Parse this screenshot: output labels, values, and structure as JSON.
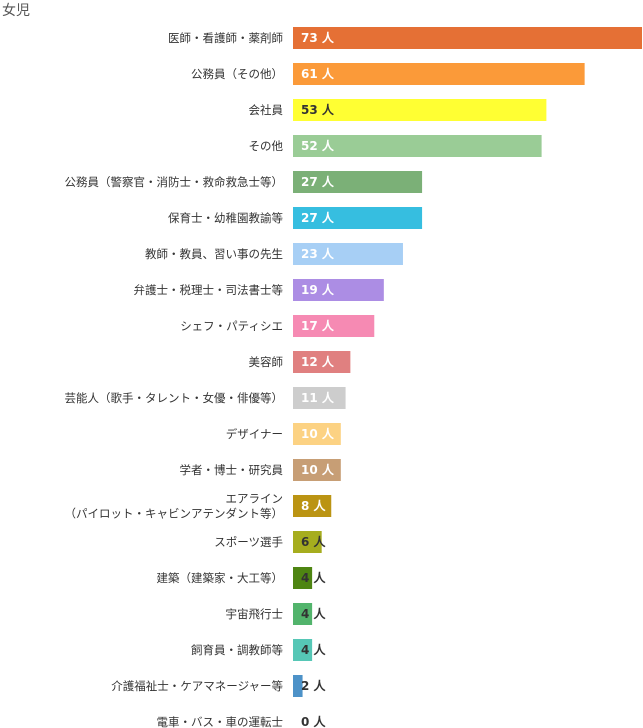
{
  "chart_data": {
    "type": "bar",
    "orientation": "horizontal",
    "title": "女児",
    "unit": "人",
    "xlim": [
      0,
      73
    ],
    "categories": [
      [
        "医師・看護師・薬剤師"
      ],
      [
        "公務員（その他）"
      ],
      [
        "会社員"
      ],
      [
        "その他"
      ],
      [
        "公務員（警察官・消防士・救命救急士等）"
      ],
      [
        "保育士・幼稚園教諭等"
      ],
      [
        "教師・教員、習い事の先生"
      ],
      [
        "弁護士・税理士・司法書士等"
      ],
      [
        "シェフ・パティシエ"
      ],
      [
        "美容師"
      ],
      [
        "芸能人（歌手・タレント・女優・俳優等）"
      ],
      [
        "デザイナー"
      ],
      [
        "学者・博士・研究員"
      ],
      [
        "エアライン",
        "（パイロット・キャビンアテンダント等）"
      ],
      [
        "スポーツ選手"
      ],
      [
        "建築（建築家・大工等）"
      ],
      [
        "宇宙飛行士"
      ],
      [
        "飼育員・調教師等"
      ],
      [
        "介護福祉士・ケアマネージャー等"
      ],
      [
        "電車・バス・車の運転士"
      ]
    ],
    "values": [
      73,
      61,
      53,
      52,
      27,
      27,
      23,
      19,
      17,
      12,
      11,
      10,
      10,
      8,
      6,
      4,
      4,
      4,
      2,
      0
    ],
    "value_labels": [
      "73 人",
      "61 人",
      "53 人",
      "52 人",
      "27 人",
      "27 人",
      "23 人",
      "19 人",
      "17 人",
      "12 人",
      "11 人",
      "10 人",
      "10 人",
      "8 人",
      "6 人",
      "4 人",
      "4 人",
      "4 人",
      "2 人",
      "0 人"
    ],
    "colors": [
      "#e57035",
      "#fb9a39",
      "#ffff33",
      "#9acc96",
      "#7bb077",
      "#36bee0",
      "#a7cff5",
      "#ac8de4",
      "#f68ab3",
      "#e08080",
      "#cdcdcd",
      "#fcd283",
      "#c79e75",
      "#bb9413",
      "#a6ad1e",
      "#4e8512",
      "#52b46c",
      "#56c7b6",
      "#4d92c8",
      "#a0a0a0"
    ],
    "label_colors": [
      "#ffffff",
      "#ffffff",
      "#333333",
      "#ffffff",
      "#ffffff",
      "#ffffff",
      "#ffffff",
      "#ffffff",
      "#ffffff",
      "#ffffff",
      "#ffffff",
      "#ffffff",
      "#ffffff",
      "#ffffff",
      "#333333",
      "#333333",
      "#333333",
      "#333333",
      "#333333",
      "#333333"
    ],
    "grid": false,
    "legend": "none"
  }
}
